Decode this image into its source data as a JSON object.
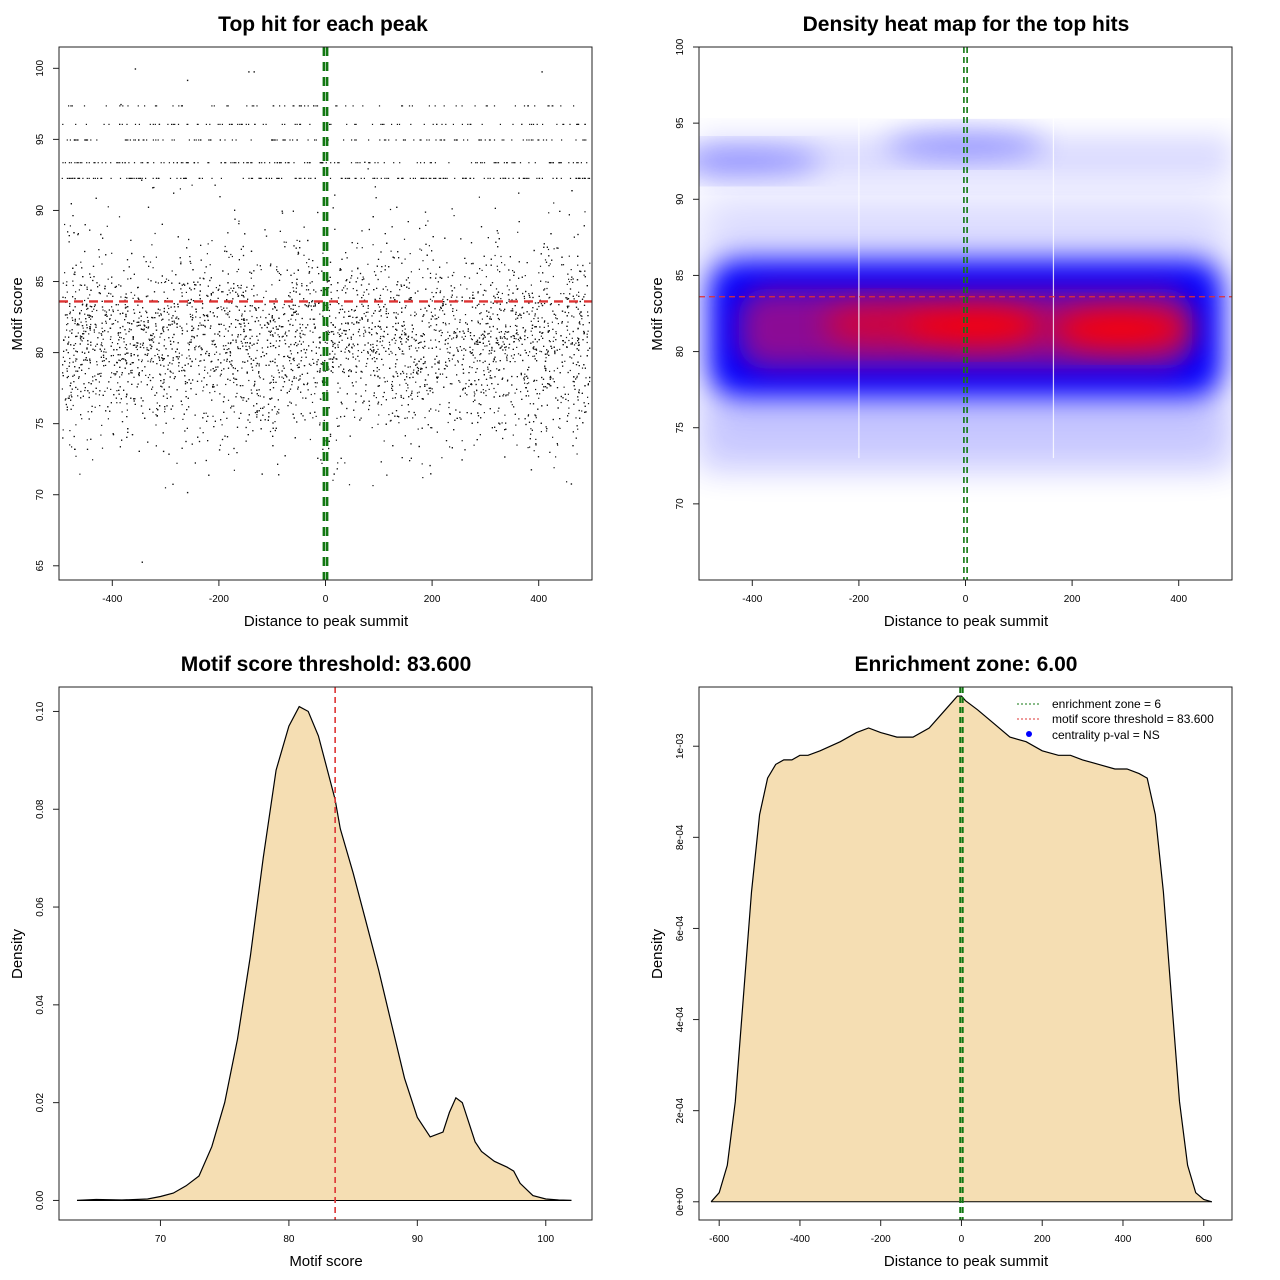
{
  "chart_data": [
    {
      "id": "scatter",
      "type": "scatter",
      "title": "Top hit for each peak",
      "xlabel": "Distance to peak summit",
      "ylabel": "Motif score",
      "xlim": [
        -500,
        500
      ],
      "ylim": [
        64,
        101.5
      ],
      "xticks": [
        -400,
        -200,
        0,
        200,
        400
      ],
      "yticks": [
        65,
        70,
        75,
        80,
        85,
        90,
        95,
        100
      ],
      "point_count_approx": 6000,
      "score_distribution": {
        "center": 81.5,
        "spread": 3.8,
        "min": 65.3,
        "max": 100
      },
      "discrete_score_rows": [
        92.3,
        93.4,
        95.0,
        96.1,
        97.4
      ],
      "hline": {
        "y": 83.6,
        "color": "#dd3333",
        "style": "dashed"
      },
      "vlines": [
        {
          "x": -3,
          "color": "#117711",
          "style": "dashed"
        },
        {
          "x": 3,
          "color": "#117711",
          "style": "dashed"
        }
      ]
    },
    {
      "id": "heatmap",
      "type": "heatmap",
      "title": "Density heat map for the top hits",
      "xlabel": "Distance to peak summit",
      "ylabel": "Motif score",
      "xlim": [
        -500,
        500
      ],
      "ylim": [
        65,
        100
      ],
      "xticks": [
        -400,
        -200,
        0,
        200,
        400
      ],
      "yticks": [
        70,
        75,
        80,
        85,
        90,
        95,
        100
      ],
      "colors": {
        "low": "#ffffff",
        "mid": "#0000ff",
        "high": "#ff0000"
      },
      "density_band": {
        "center": 81.5,
        "halfwidth": 3.2
      },
      "hot_spots": [
        {
          "x": 20,
          "y": 81.7
        },
        {
          "x": 290,
          "y": 81.5
        },
        {
          "x": -160,
          "y": 81.8
        }
      ],
      "upper_bands": [
        {
          "x": -420,
          "y": 92.5
        },
        {
          "x": 0,
          "y": 93.6
        }
      ],
      "hline": {
        "y": 83.6,
        "color": "#dd3333",
        "style": "dashed"
      },
      "vlines": [
        {
          "x": -3,
          "color": "#117711",
          "style": "dashed"
        },
        {
          "x": 3,
          "color": "#117711",
          "style": "dashed"
        }
      ]
    },
    {
      "id": "score_density",
      "type": "area",
      "title": "Motif score threshold: 83.600",
      "xlabel": "Motif score",
      "ylabel": "Density",
      "xlim": [
        62.1,
        103.6
      ],
      "ylim": [
        -0.004,
        0.105
      ],
      "xticks": [
        70,
        80,
        90,
        100
      ],
      "yticks": [
        0.0,
        0.02,
        0.04,
        0.06,
        0.08,
        0.1
      ],
      "ytick_labels": [
        "0.00",
        "0.02",
        "0.04",
        "0.06",
        "0.08",
        "0.10"
      ],
      "fill": "#f5deb3",
      "x": [
        63.5,
        65,
        67,
        69,
        70,
        71,
        72,
        73,
        74,
        75,
        76,
        77,
        78,
        79,
        80,
        80.8,
        81.5,
        82.3,
        83,
        83.6,
        84,
        85,
        86,
        87,
        88,
        89,
        90,
        91,
        92,
        92.5,
        93,
        93.5,
        94,
        94.5,
        95,
        96,
        97,
        97.5,
        98,
        99,
        100,
        101,
        102
      ],
      "y": [
        0.0,
        0.0002,
        0.0001,
        0.0003,
        0.0008,
        0.0015,
        0.003,
        0.005,
        0.011,
        0.02,
        0.033,
        0.05,
        0.07,
        0.088,
        0.097,
        0.101,
        0.1,
        0.095,
        0.088,
        0.082,
        0.076,
        0.067,
        0.057,
        0.047,
        0.036,
        0.025,
        0.017,
        0.013,
        0.014,
        0.018,
        0.021,
        0.02,
        0.016,
        0.012,
        0.01,
        0.008,
        0.0068,
        0.006,
        0.0035,
        0.001,
        0.0003,
        0.0001,
        0.0
      ],
      "vline": {
        "x": 83.6,
        "color": "#dd3333",
        "style": "dashed"
      }
    },
    {
      "id": "distance_density",
      "type": "area",
      "title": "Enrichment zone: 6.00",
      "xlabel": "Distance to peak summit",
      "ylabel": "Density",
      "xlim": [
        -650,
        670
      ],
      "ylim": [
        -4e-05,
        0.00113
      ],
      "xticks": [
        -600,
        -400,
        -200,
        0,
        200,
        400,
        600
      ],
      "yticks": [
        0,
        0.0002,
        0.0004,
        0.0006,
        0.0008,
        0.001
      ],
      "ytick_labels": [
        "0e+00",
        "2e-04",
        "4e-04",
        "6e-04",
        "8e-04",
        "1e-03"
      ],
      "fill": "#f5deb3",
      "x": [
        -620,
        -600,
        -580,
        -560,
        -540,
        -520,
        -500,
        -480,
        -460,
        -440,
        -420,
        -400,
        -380,
        -350,
        -300,
        -260,
        -230,
        -200,
        -160,
        -120,
        -80,
        -40,
        -10,
        0,
        10,
        40,
        80,
        120,
        160,
        200,
        240,
        270,
        300,
        340,
        380,
        410,
        440,
        460,
        480,
        500,
        520,
        540,
        560,
        580,
        600,
        620
      ],
      "y": [
        0.0,
        2e-05,
        8e-05,
        0.00022,
        0.00045,
        0.00068,
        0.00085,
        0.00093,
        0.00096,
        0.00097,
        0.00097,
        0.00098,
        0.00098,
        0.00099,
        0.00101,
        0.00103,
        0.00104,
        0.00103,
        0.00102,
        0.00102,
        0.00104,
        0.00108,
        0.00111,
        0.00111,
        0.0011,
        0.00108,
        0.00105,
        0.00102,
        0.00101,
        0.00099,
        0.00098,
        0.00098,
        0.00097,
        0.00096,
        0.00095,
        0.00095,
        0.00094,
        0.00093,
        0.00085,
        0.00068,
        0.00045,
        0.00022,
        8e-05,
        2e-05,
        5e-06,
        0.0
      ],
      "vlines": [
        {
          "x": -3,
          "color": "#117711",
          "style": "dashed"
        },
        {
          "x": 3,
          "color": "#117711",
          "style": "dashed"
        }
      ],
      "legend": {
        "position": "top-right",
        "items": [
          {
            "label": "enrichment zone = 6",
            "color": "#117711",
            "kind": "dotted-line"
          },
          {
            "label": "motif score threshold = 83.600",
            "color": "#dd3333",
            "kind": "dotted-line"
          },
          {
            "label": "centrality p-val = NS",
            "color": "#0000ff",
            "kind": "point"
          }
        ]
      }
    }
  ]
}
